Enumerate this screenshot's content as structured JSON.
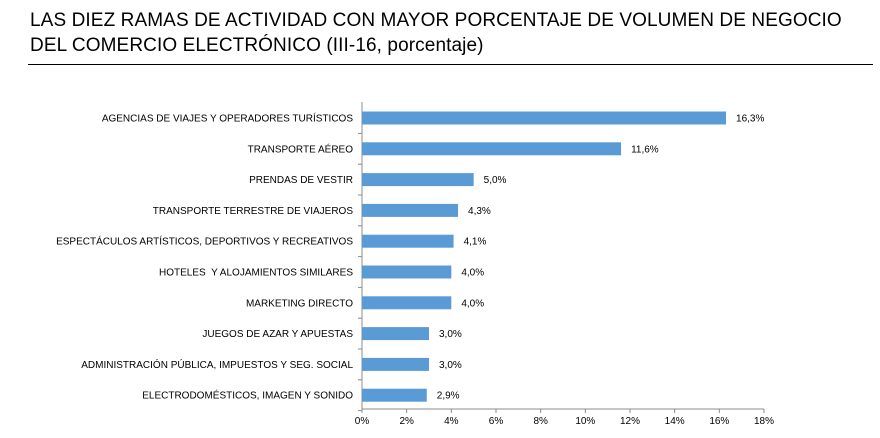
{
  "title": {
    "line1": "LAS DIEZ RAMAS DE ACTIVIDAD CON MAYOR PORCENTAJE DE VOLUMEN DE NEGOCIO",
    "line2": "DEL COMERCIO ELECTRÓNICO (III-16, porcentaje)"
  },
  "chart_data": {
    "type": "bar",
    "orientation": "horizontal",
    "categories": [
      "AGENCIAS DE VIAJES Y OPERADORES TURÍSTICOS",
      "TRANSPORTE AÉREO",
      "PRENDAS DE VESTIR",
      "TRANSPORTE TERRESTRE DE VIAJEROS",
      "ESPECTÁCULOS ARTÍSTICOS, DEPORTIVOS Y RECREATIVOS",
      "HOTELES  Y ALOJAMIENTOS SIMILARES",
      "MARKETING DIRECTO",
      "JUEGOS DE AZAR Y APUESTAS",
      "ADMINISTRACIÓN PÚBLICA, IMPUESTOS Y SEG. SOCIAL",
      "ELECTRODOMÉSTICOS, IMAGEN Y SONIDO"
    ],
    "values": [
      16.3,
      11.6,
      5.0,
      4.3,
      4.1,
      4.0,
      4.0,
      3.0,
      3.0,
      2.9
    ],
    "value_labels": [
      "16,3%",
      "11,6%",
      "5,0%",
      "4,3%",
      "4,1%",
      "4,0%",
      "4,0%",
      "3,0%",
      "3,0%",
      "2,9%"
    ],
    "xlim": [
      0,
      18
    ],
    "xticks": [
      "0%",
      "2%",
      "4%",
      "6%",
      "8%",
      "10%",
      "12%",
      "14%",
      "16%",
      "18%"
    ],
    "grid": false,
    "bar_color": "#5b9bd5"
  }
}
